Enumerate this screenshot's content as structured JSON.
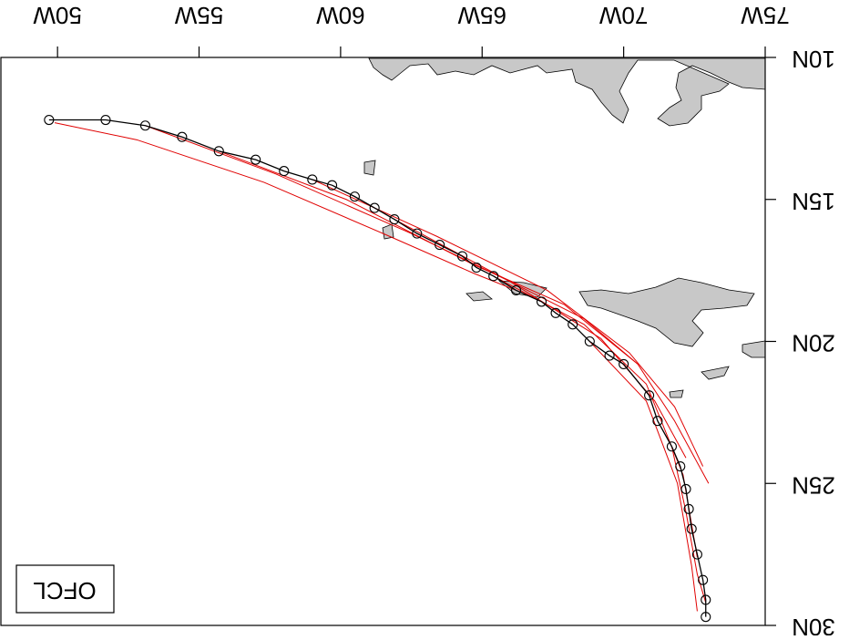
{
  "chart_data": {
    "type": "track",
    "label": "OFCL",
    "xlim": [
      48,
      75
    ],
    "ylim": [
      10,
      30
    ],
    "xticks": [
      {
        "value": 50,
        "label": "50W"
      },
      {
        "value": 55,
        "label": "55W"
      },
      {
        "value": 60,
        "label": "60W"
      },
      {
        "value": 65,
        "label": "65W"
      },
      {
        "value": 70,
        "label": "70W"
      },
      {
        "value": 75,
        "label": "75W"
      }
    ],
    "yticks": [
      {
        "value": 10,
        "label": "10N"
      },
      {
        "value": 15,
        "label": "15N"
      },
      {
        "value": 20,
        "label": "20N"
      },
      {
        "value": 25,
        "label": "25N"
      },
      {
        "value": 30,
        "label": "30N"
      }
    ],
    "best_track": {
      "color": "#000000",
      "x": [
        49.7,
        51.7,
        53.1,
        54.4,
        55.7,
        57.0,
        58.0,
        59.0,
        59.7,
        60.5,
        61.2,
        61.9,
        62.7,
        63.5,
        64.3,
        64.8,
        65.4,
        66.2,
        67.1,
        67.6,
        68.2,
        68.8,
        69.5,
        70.0,
        70.9,
        71.2,
        71.7,
        72.0,
        72.2,
        72.3,
        72.4,
        72.6,
        72.8,
        72.9,
        72.9
      ],
      "y": [
        12.2,
        12.2,
        12.4,
        12.8,
        13.3,
        13.6,
        14.0,
        14.3,
        14.5,
        14.9,
        15.3,
        15.7,
        16.2,
        16.6,
        17.0,
        17.4,
        17.7,
        18.2,
        18.6,
        19.0,
        19.4,
        20.0,
        20.5,
        20.8,
        21.9,
        22.8,
        23.7,
        24.4,
        25.2,
        25.9,
        26.6,
        27.5,
        28.4,
        29.1,
        29.7
      ]
    },
    "forecasts": [
      {
        "color": "#e00000",
        "x": [
          49.9,
          52.8,
          57.3,
          61.5,
          64.7,
          66.7
        ],
        "y": [
          12.3,
          12.9,
          14.4,
          16.2,
          17.6,
          18.4
        ]
      },
      {
        "color": "#e00000",
        "x": [
          53.1,
          57.7,
          62.5,
          66.0,
          68.6,
          70.5
        ],
        "y": [
          12.4,
          14.1,
          16.2,
          17.9,
          19.2,
          20.8
        ]
      },
      {
        "color": "#e00000",
        "x": [
          55.7,
          60.2,
          64.7,
          67.9,
          70.5,
          71.8,
          73.0
        ],
        "y": [
          13.3,
          15.0,
          17.3,
          18.7,
          20.8,
          22.8,
          25.0
        ]
      },
      {
        "color": "#e00000",
        "x": [
          59.0,
          63.4,
          67.3,
          70.2,
          71.8,
          72.8
        ],
        "y": [
          14.3,
          16.3,
          18.2,
          20.4,
          22.3,
          24.4
        ]
      },
      {
        "color": "#e00000",
        "x": [
          61.9,
          66.0,
          69.2,
          71.1,
          72.2
        ],
        "y": [
          15.7,
          17.9,
          19.9,
          22.1,
          24.1
        ]
      },
      {
        "color": "#e00000",
        "x": [
          65.4,
          68.6,
          70.8,
          72.1,
          72.6
        ],
        "y": [
          17.7,
          19.4,
          21.5,
          24.7,
          27.6
        ]
      },
      {
        "color": "#e00000",
        "x": [
          68.8,
          70.8,
          71.9,
          72.4,
          72.6
        ],
        "y": [
          20.0,
          22.1,
          25.0,
          27.9,
          29.5
        ]
      },
      {
        "color": "#e00000",
        "x": [
          71.7,
          72.2,
          72.6,
          72.9
        ],
        "y": [
          23.7,
          26.0,
          28.2,
          29.2
        ]
      }
    ]
  }
}
